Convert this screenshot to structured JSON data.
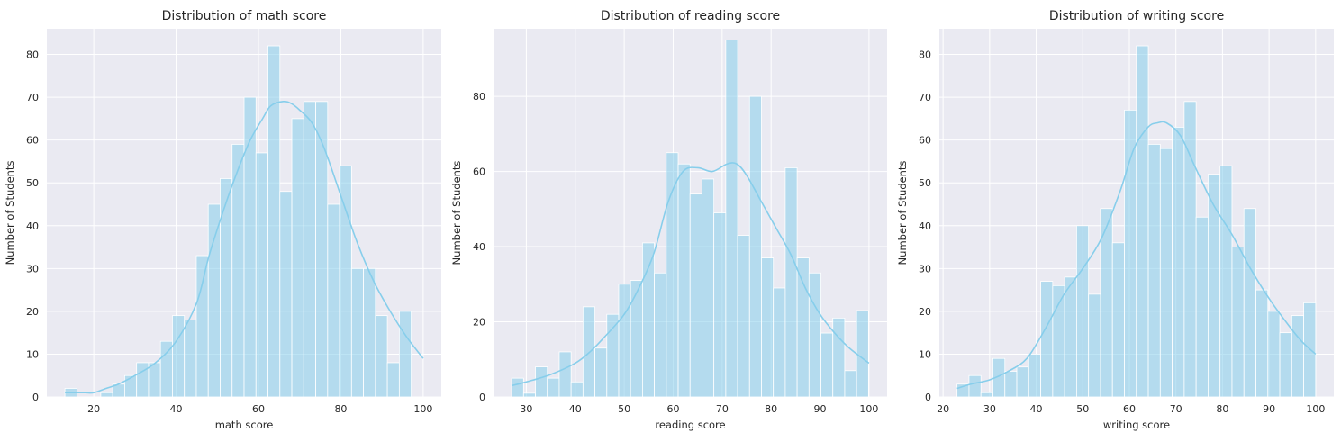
{
  "style": {
    "bar_fill": "#87CEEB",
    "bar_edge": "#ffffff",
    "kde_color": "#87CEEB",
    "axes_bg": "#EAEAF2",
    "grid": "#ffffff"
  },
  "chart_data": [
    {
      "type": "bar",
      "title": "Distribution of math score",
      "xlabel": "math score",
      "ylabel": "Number of Students",
      "grid": true,
      "xlim": [
        8.6,
        104.4
      ],
      "ylim": [
        0,
        86
      ],
      "xticks": [
        20,
        40,
        60,
        80,
        100
      ],
      "yticks": [
        0,
        10,
        20,
        30,
        40,
        50,
        60,
        70,
        80
      ],
      "bin_start": 13,
      "bin_width": 2.9,
      "values": [
        2,
        0,
        0,
        1,
        3,
        5,
        8,
        8,
        13,
        19,
        18,
        33,
        45,
        51,
        59,
        70,
        57,
        82,
        48,
        65,
        69,
        69,
        45,
        54,
        30,
        30,
        19,
        8,
        20
      ],
      "kde": {
        "x": [
          13,
          15,
          18,
          20,
          23,
          26,
          30,
          35,
          40,
          45,
          48,
          52,
          55,
          58,
          61,
          63,
          66,
          68,
          70,
          73,
          76,
          80,
          84,
          88,
          92,
          96,
          100
        ],
        "y": [
          1,
          1,
          1,
          1,
          2,
          3,
          5,
          8,
          13,
          22,
          33,
          45,
          53,
          60,
          65,
          68,
          69,
          68.5,
          67,
          64,
          58,
          47,
          36,
          27,
          20,
          14,
          9
        ]
      }
    },
    {
      "type": "bar",
      "title": "Distribution of reading score",
      "xlabel": "reading score",
      "ylabel": "Number of Students",
      "grid": true,
      "xlim": [
        23.3,
        103.7
      ],
      "ylim": [
        0,
        98
      ],
      "xticks": [
        30,
        40,
        50,
        60,
        70,
        80,
        90,
        100
      ],
      "yticks": [
        0,
        20,
        40,
        60,
        80
      ],
      "bin_start": 27,
      "bin_width": 2.43,
      "values": [
        5,
        1,
        8,
        5,
        12,
        4,
        24,
        13,
        22,
        30,
        31,
        41,
        33,
        65,
        62,
        54,
        58,
        49,
        95,
        43,
        80,
        37,
        29,
        61,
        37,
        33,
        17,
        21,
        7,
        23
      ],
      "kde": {
        "x": [
          27,
          30,
          35,
          40,
          43,
          46,
          50,
          53,
          56,
          59,
          62,
          65,
          68,
          71,
          73,
          75,
          78,
          81,
          84,
          87,
          90,
          93,
          96,
          100
        ],
        "y": [
          3,
          4,
          6,
          9,
          12,
          16,
          22,
          29,
          38,
          52,
          60,
          61,
          60,
          62,
          62,
          59,
          52,
          45,
          38,
          29,
          22,
          17,
          13,
          9
        ]
      }
    },
    {
      "type": "bar",
      "title": "Distribution of writing score",
      "xlabel": "writing score",
      "ylabel": "Number of Students",
      "grid": true,
      "xlim": [
        19.2,
        103.9
      ],
      "ylim": [
        0,
        86
      ],
      "xticks": [
        20,
        30,
        40,
        50,
        60,
        70,
        80,
        90,
        100
      ],
      "yticks": [
        0,
        10,
        20,
        30,
        40,
        50,
        60,
        70,
        80
      ],
      "bin_start": 23,
      "bin_width": 2.567,
      "values": [
        3,
        5,
        1,
        9,
        6,
        7,
        10,
        27,
        26,
        28,
        40,
        24,
        44,
        36,
        67,
        82,
        59,
        58,
        63,
        69,
        42,
        52,
        54,
        35,
        44,
        25,
        20,
        15,
        19,
        22
      ],
      "kde": {
        "x": [
          23,
          26,
          30,
          34,
          38,
          42,
          46,
          50,
          54,
          58,
          61,
          64,
          66,
          68,
          71,
          74,
          78,
          82,
          86,
          90,
          94,
          97,
          100
        ],
        "y": [
          2,
          3,
          4,
          6,
          9,
          16,
          24,
          30,
          37,
          48,
          58,
          63,
          64,
          64,
          61,
          54,
          45,
          38,
          30,
          23,
          17,
          13,
          10
        ]
      }
    }
  ]
}
